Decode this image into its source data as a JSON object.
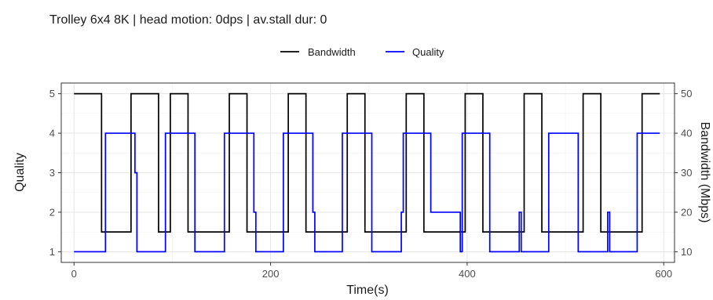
{
  "chart_data": {
    "type": "line",
    "title": "Trolley 6x4 8K | head motion:  0dps | av.stall dur: 0",
    "xlabel": "Time(s)",
    "ylabel_left": "Quality",
    "ylabel_right": "Bandwidth (Mbps)",
    "xlim": [
      -13,
      611
    ],
    "ylim_left": [
      0.73,
      5.27
    ],
    "ylim_right": [
      7.3,
      52.7
    ],
    "x_ticks": [
      0,
      200,
      400,
      600
    ],
    "y_ticks_left": [
      1,
      2,
      3,
      4,
      5
    ],
    "y_ticks_right": [
      10,
      20,
      30,
      40,
      50
    ],
    "grid": true,
    "legend_position": "top",
    "series": [
      {
        "name": "Bandwidth",
        "axis": "right",
        "color": "#000000",
        "shape": "hv",
        "x": [
          0,
          28,
          28,
          40,
          58,
          58,
          86,
          86,
          90,
          98,
          98,
          116,
          116,
          128,
          128,
          134,
          136,
          140,
          150,
          150,
          158,
          158,
          176,
          176,
          188,
          188,
          194,
          196,
          200,
          210,
          210,
          214,
          218,
          218,
          236,
          236,
          248,
          248,
          252,
          254,
          260,
          270,
          270,
          274,
          278,
          278,
          296,
          296,
          308,
          308,
          312,
          316,
          320,
          330,
          330,
          334,
          338,
          338,
          356,
          356,
          368,
          368,
          372,
          376,
          380,
          390,
          390,
          394,
          398,
          398,
          416,
          416,
          428,
          428,
          432,
          436,
          440,
          450,
          450,
          454,
          458,
          458,
          476,
          476,
          488,
          488,
          494,
          496,
          500,
          510,
          510,
          514,
          518,
          518,
          536,
          536,
          548,
          548,
          552,
          556,
          560,
          570,
          570,
          574,
          578,
          578,
          596
        ],
        "y": [
          50,
          50,
          15,
          15,
          15,
          50,
          50,
          15,
          15,
          15,
          50,
          50,
          15,
          15,
          15,
          15,
          15,
          15,
          15,
          15,
          15,
          50,
          50,
          15,
          15,
          15,
          15,
          15,
          15,
          15,
          15,
          15,
          15,
          50,
          50,
          15,
          15,
          15,
          15,
          15,
          15,
          15,
          15,
          15,
          15,
          50,
          50,
          15,
          15,
          15,
          15,
          15,
          15,
          15,
          15,
          15,
          15,
          50,
          50,
          15,
          15,
          15,
          15,
          15,
          15,
          15,
          15,
          15,
          15,
          50,
          50,
          15,
          15,
          15,
          15,
          15,
          15,
          15,
          15,
          15,
          15,
          50,
          50,
          15,
          15,
          15,
          15,
          15,
          15,
          15,
          15,
          15,
          15,
          50,
          50,
          15,
          15,
          15,
          15,
          15,
          15,
          15,
          15,
          15,
          15,
          50,
          50
        ]
      },
      {
        "name": "Quality",
        "axis": "left",
        "color": "#0000ff",
        "shape": "hv",
        "x": [
          0,
          32,
          32,
          40,
          62,
          62,
          64,
          64,
          67,
          67,
          93,
          93,
          123,
          123,
          153,
          153,
          183,
          183,
          185,
          185,
          213,
          213,
          243,
          243,
          245,
          245,
          273,
          273,
          303,
          303,
          333,
          333,
          335,
          335,
          363,
          363,
          393,
          393,
          395,
          395,
          423,
          423,
          453,
          453,
          455,
          455,
          483,
          483,
          513,
          513,
          543,
          543,
          545,
          545,
          573,
          573,
          596
        ],
        "y": [
          1,
          1,
          4,
          4,
          4,
          3,
          3,
          1,
          1,
          1,
          1,
          4,
          4,
          1,
          1,
          4,
          4,
          2,
          2,
          1,
          1,
          4,
          4,
          2,
          2,
          1,
          1,
          4,
          4,
          1,
          1,
          2,
          2,
          4,
          4,
          2,
          2,
          1,
          1,
          4,
          4,
          1,
          1,
          2,
          2,
          1,
          1,
          4,
          4,
          1,
          1,
          2,
          2,
          1,
          1,
          4,
          4
        ]
      }
    ]
  }
}
